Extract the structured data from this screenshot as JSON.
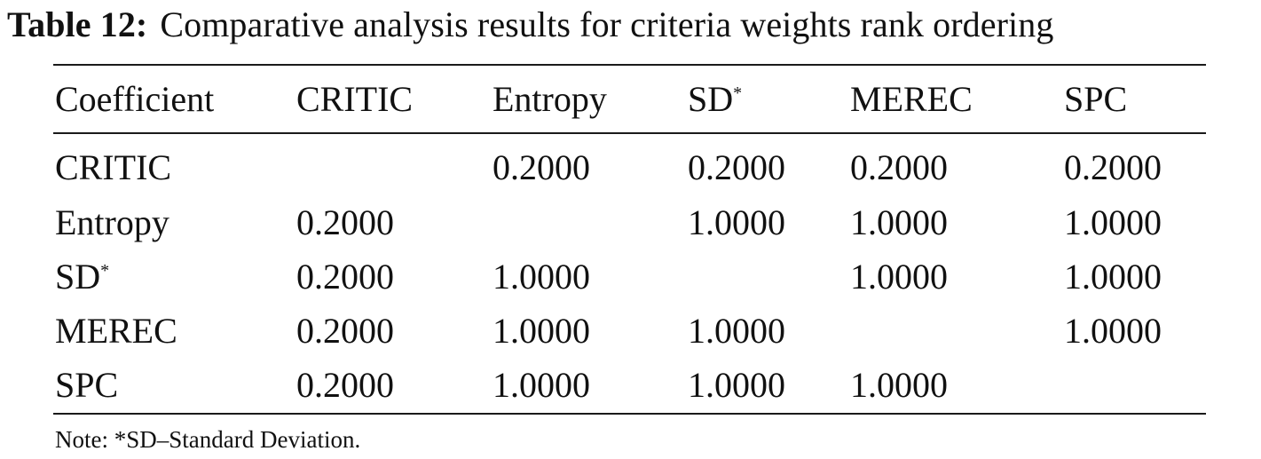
{
  "caption": {
    "label": "Table 12:",
    "text": "Comparative analysis results for criteria weights rank ordering"
  },
  "table": {
    "headers": [
      "Coefficient",
      "CRITIC",
      "Entropy",
      "SD",
      "MEREC",
      "SPC"
    ],
    "header_superscript": "*",
    "rows": [
      {
        "label": "CRITIC",
        "values": [
          "",
          "0.2000",
          "0.2000",
          "0.2000",
          "0.2000"
        ]
      },
      {
        "label": "Entropy",
        "values": [
          "0.2000",
          "",
          "1.0000",
          "1.0000",
          "1.0000"
        ]
      },
      {
        "label": "SD",
        "values": [
          "0.2000",
          "1.0000",
          "",
          "1.0000",
          "1.0000"
        ]
      },
      {
        "label": "MEREC",
        "values": [
          "0.2000",
          "1.0000",
          "1.0000",
          "",
          "1.0000"
        ]
      },
      {
        "label": "SPC",
        "values": [
          "0.2000",
          "1.0000",
          "1.0000",
          "1.0000",
          ""
        ]
      }
    ]
  },
  "note": "Note: *SD–Standard Deviation."
}
